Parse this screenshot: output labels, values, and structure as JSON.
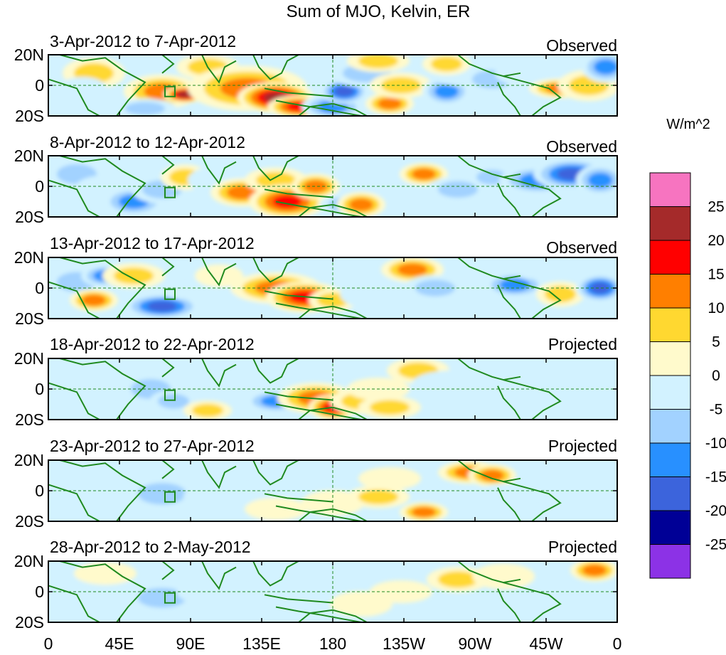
{
  "title": "Sum of MJO, Kelvin, ER",
  "panels": [
    {
      "date_range": "3-Apr-2012 to 7-Apr-2012",
      "status": "Observed"
    },
    {
      "date_range": "8-Apr-2012 to 12-Apr-2012",
      "status": "Observed"
    },
    {
      "date_range": "13-Apr-2012 to 17-Apr-2012",
      "status": "Observed"
    },
    {
      "date_range": "18-Apr-2012 to 22-Apr-2012",
      "status": "Projected"
    },
    {
      "date_range": "23-Apr-2012 to 27-Apr-2012",
      "status": "Projected"
    },
    {
      "date_range": "28-Apr-2012 to 2-May-2012",
      "status": "Projected"
    }
  ],
  "lat_labels": [
    "20N",
    "0",
    "20S"
  ],
  "lon_labels": [
    "0",
    "45E",
    "90E",
    "135E",
    "180",
    "135W",
    "90W",
    "45W",
    "0"
  ],
  "colorbar": {
    "unit": "W/m^2",
    "tick_labels": [
      "25",
      "20",
      "15",
      "10",
      "5",
      "0",
      "-5",
      "-10",
      "-15",
      "-20",
      "-25"
    ],
    "colors": [
      "#f774c0",
      "#a52a2a",
      "#ff0000",
      "#ff7f00",
      "#ffd830",
      "#fffacc",
      "#d2f2ff",
      "#a2d2ff",
      "#2890ff",
      "#3c64dc",
      "#000096",
      "#8c32e6"
    ]
  },
  "map_colors": {
    "coast": "#1f8a1f",
    "dashed_reference": "#1f8a1f"
  }
}
